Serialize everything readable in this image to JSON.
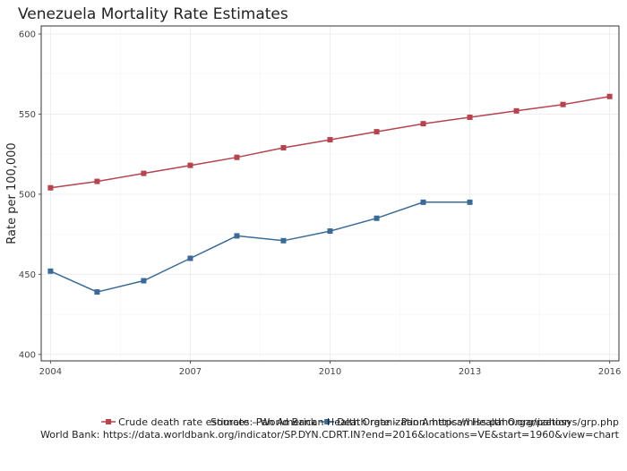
{
  "chart_data": {
    "type": "line",
    "title": "Venezuela Mortality Rate Estimates",
    "xlabel": "",
    "ylabel": "Rate per 100,000",
    "xlim": [
      2003.8,
      2016.2
    ],
    "ylim": [
      396,
      605
    ],
    "x_ticks": [
      2004,
      2007,
      2010,
      2013,
      2016
    ],
    "y_ticks": [
      400,
      450,
      500,
      550,
      600
    ],
    "grid": true,
    "legend_position": "bottom",
    "series": [
      {
        "name": "Crude death rate estimate – World Bank",
        "color": "#b5444f",
        "x": [
          2004,
          2005,
          2006,
          2007,
          2008,
          2009,
          2010,
          2011,
          2012,
          2013,
          2014,
          2015,
          2016
        ],
        "values": [
          504,
          508,
          513,
          518,
          523,
          529,
          534,
          539,
          544,
          548,
          552,
          556,
          561
        ]
      },
      {
        "name": "Death rate – Pan American Health Organization",
        "color": "#3b6a97",
        "x": [
          2004,
          2005,
          2006,
          2007,
          2008,
          2009,
          2010,
          2011,
          2012,
          2013
        ],
        "values": [
          452,
          439,
          446,
          460,
          474,
          471,
          477,
          485,
          495,
          495
        ]
      }
    ]
  },
  "sources": {
    "line1": "Sources: Pan American Health Organization: https://hiss.paho.org/pahosys/grp.php",
    "line2": "World Bank: https://data.worldbank.org/indicator/SP.DYN.CDRT.IN?end=2016&locations=VE&start=1960&view=chart"
  }
}
